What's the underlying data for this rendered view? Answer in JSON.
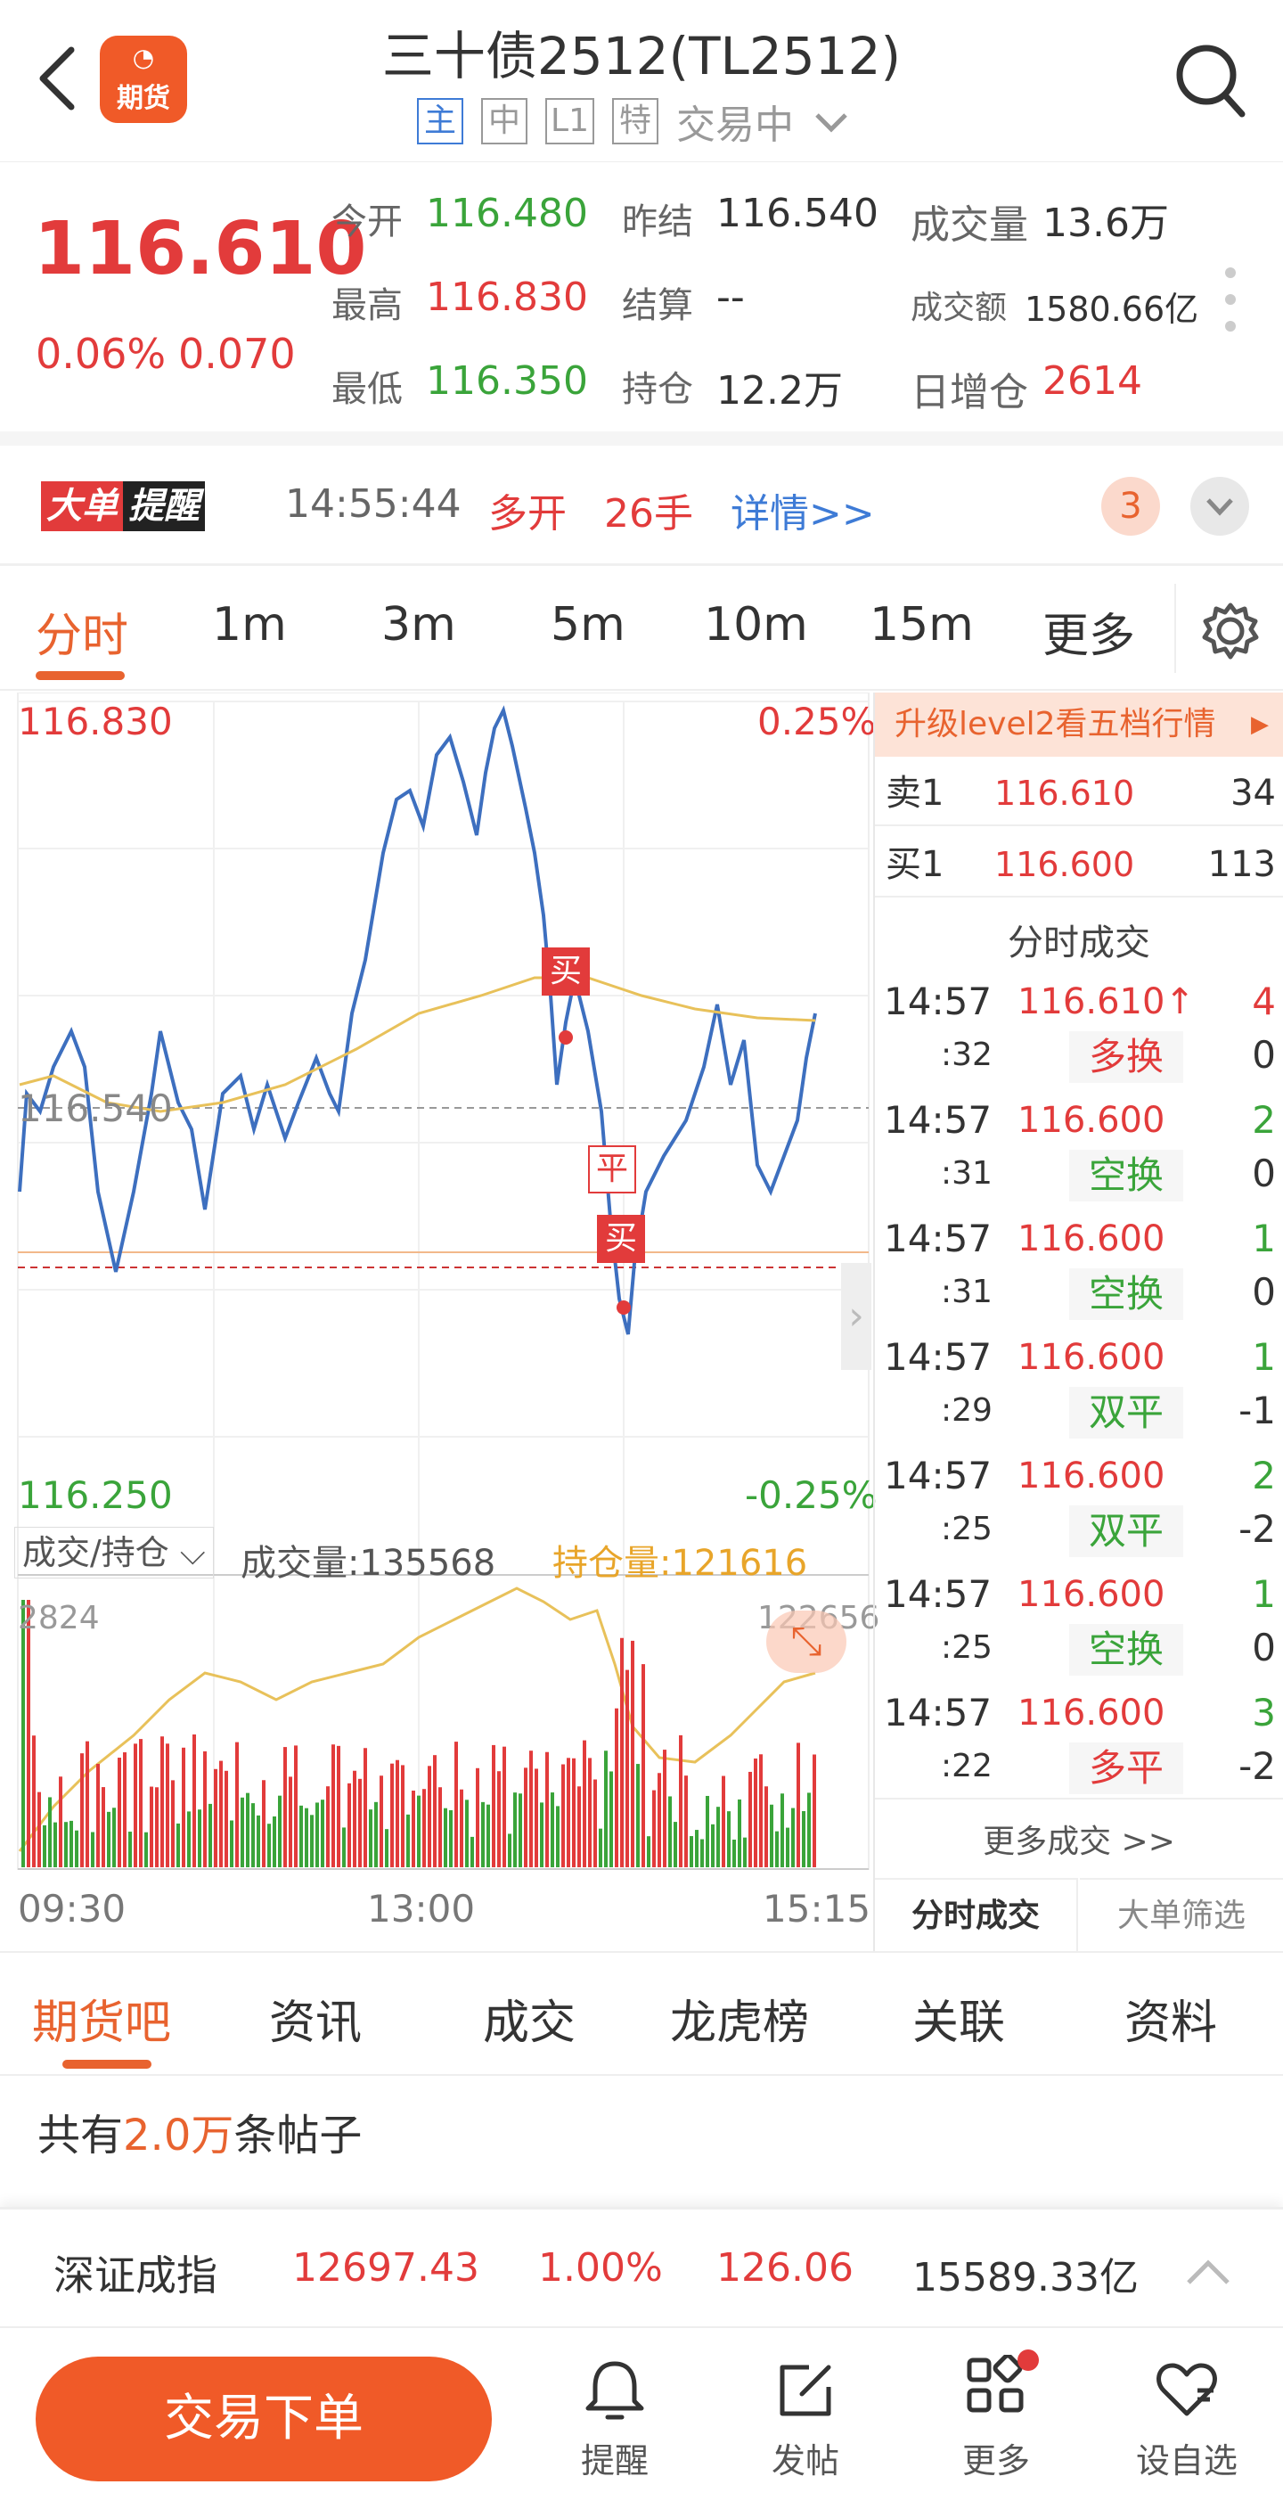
{
  "header": {
    "title": "三十债2512(TL2512)",
    "logo_text": "期货",
    "badges": [
      "主",
      "中",
      "L1",
      "特"
    ],
    "status": "交易中"
  },
  "quote": {
    "price": "116.610",
    "change_pct": "0.06%",
    "change": "0.070",
    "cells": [
      {
        "label": "今开",
        "value": "116.480",
        "color": "green"
      },
      {
        "label": "昨结",
        "value": "116.540",
        "color": "grey"
      },
      {
        "label": "成交量",
        "value": "13.6万",
        "color": "grey"
      },
      {
        "label": "最高",
        "value": "116.830",
        "color": "red"
      },
      {
        "label": "结算",
        "value": "--",
        "color": "grey"
      },
      {
        "label": "成交额",
        "value": "1580.66亿",
        "color": "grey"
      },
      {
        "label": "最低",
        "value": "116.350",
        "color": "green"
      },
      {
        "label": "持仓",
        "value": "12.2万",
        "color": "grey"
      },
      {
        "label": "日增仓",
        "value": "2614",
        "color": "red"
      }
    ]
  },
  "alert": {
    "logo_a": "大单",
    "logo_b": "提醒",
    "time": "14:55:44",
    "direction": "多开",
    "lots": "26手",
    "detail": "详情>>",
    "count": "3"
  },
  "period_tabs": [
    "分时",
    "1m",
    "3m",
    "5m",
    "10m",
    "15m",
    "更多"
  ],
  "chart": {
    "y_max": "116.830",
    "y_min": "116.250",
    "pct_max": "0.25%",
    "pct_min": "-0.25%",
    "ref": "116.540",
    "vol_selector": "成交/持仓",
    "vol_label": "成交量:135568",
    "oi_label": "持仓量:121616",
    "vol_max": "2824",
    "oi_max": "122656",
    "x_labels": [
      "09:30",
      "13:00",
      "15:15"
    ],
    "markers": [
      "买",
      "平",
      "买"
    ],
    "colors": {
      "price": "#3d6fbf",
      "avg": "#e8c15a",
      "up": "#e23b3b",
      "down": "#3aa43a"
    }
  },
  "chart_data": {
    "type": "line",
    "series": [],
    "ylim": [
      116.25,
      116.83
    ]
  },
  "ticks": {
    "upgrade": "升级level2看五档行情",
    "sell1": {
      "label": "卖1",
      "price": "116.610",
      "vol": "34"
    },
    "buy1": {
      "label": "买1",
      "price": "116.600",
      "vol": "113"
    },
    "title": "分时成交",
    "rows": [
      {
        "time": "14:57",
        "sec": ":32",
        "price": "116.610↑",
        "vol": "4",
        "vol_color": "red",
        "type": "多换",
        "type_color": "red",
        "oi": "0"
      },
      {
        "time": "14:57",
        "sec": ":31",
        "price": "116.600",
        "vol": "2",
        "vol_color": "green",
        "type": "空换",
        "type_color": "green",
        "oi": "0"
      },
      {
        "time": "14:57",
        "sec": ":31",
        "price": "116.600",
        "vol": "1",
        "vol_color": "green",
        "type": "空换",
        "type_color": "green",
        "oi": "0"
      },
      {
        "time": "14:57",
        "sec": ":29",
        "price": "116.600",
        "vol": "1",
        "vol_color": "green",
        "type": "双平",
        "type_color": "green",
        "oi": "-1"
      },
      {
        "time": "14:57",
        "sec": ":25",
        "price": "116.600",
        "vol": "2",
        "vol_color": "green",
        "type": "双平",
        "type_color": "green",
        "oi": "-2"
      },
      {
        "time": "14:57",
        "sec": ":25",
        "price": "116.600",
        "vol": "1",
        "vol_color": "green",
        "type": "空换",
        "type_color": "green",
        "oi": "0"
      },
      {
        "time": "14:57",
        "sec": ":22",
        "price": "116.600",
        "vol": "3",
        "vol_color": "green",
        "type": "多平",
        "type_color": "red",
        "oi": "-2"
      }
    ],
    "more": "更多成交 >>",
    "tab_a": "分时成交",
    "tab_b": "大单筛选"
  },
  "bottom_tabs": [
    "期货吧",
    "资讯",
    "成交",
    "龙虎榜",
    "关联",
    "资料"
  ],
  "posts": {
    "prefix": "共有",
    "count": "2.0万",
    "suffix": "条帖子"
  },
  "index_bar": {
    "name": "深证成指",
    "value": "12697.43",
    "pct": "1.00%",
    "change": "126.06",
    "amount": "15589.33亿"
  },
  "bottom_nav": {
    "trade": "交易下单",
    "items": [
      "提醒",
      "发帖",
      "更多",
      "设自选"
    ]
  }
}
